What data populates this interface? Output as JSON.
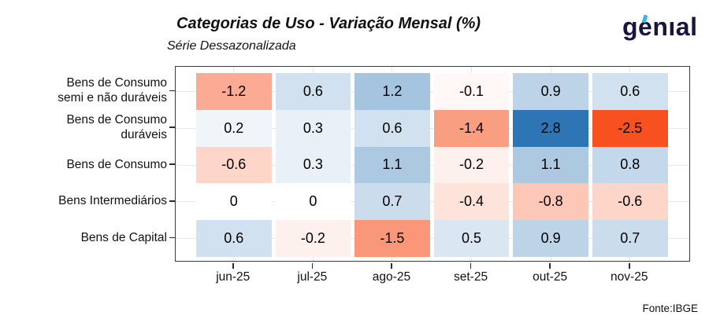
{
  "header": {
    "logo_text": "genıal"
  },
  "footer": {
    "source": "Fonte:IBGE"
  },
  "colors": {
    "negative_end": "#F6511E",
    "zero": "#FFFFFF",
    "positive_end": "#2E75B6",
    "logo_navy": "#16163F",
    "logo_cyan": "#38B6EC",
    "panel_border": "#3B3B3B",
    "gridline": "#E7E7E7",
    "cell_text": "#000000"
  },
  "chart_data": {
    "type": "heatmap",
    "title": "Categorias de Uso - Variação Mensal (%)",
    "subtitle": "Série Dessazonalizada",
    "x_categories": [
      "jun-25",
      "jul-25",
      "ago-25",
      "set-25",
      "out-25",
      "nov-25"
    ],
    "rows": [
      {
        "label": "Bens de Consumo\nsemi e não duráveis",
        "values": [
          -1.2,
          0.6,
          1.2,
          -0.1,
          0.9,
          0.6
        ]
      },
      {
        "label": "Bens de Consumo\nduráveis",
        "values": [
          0.2,
          0.3,
          0.6,
          -1.4,
          2.8,
          -2.5
        ]
      },
      {
        "label": "Bens de Consumo",
        "values": [
          -0.6,
          0.3,
          1.1,
          -0.2,
          1.1,
          0.8
        ]
      },
      {
        "label": "Bens Intermediários",
        "values": [
          0,
          0,
          0.7,
          -0.4,
          -0.8,
          -0.6
        ]
      },
      {
        "label": "Bens de Capital",
        "values": [
          0.6,
          -0.2,
          -1.5,
          0.5,
          0.9,
          0.7
        ]
      }
    ],
    "color_scale": {
      "kind": "diverging",
      "domain": [
        -2.5,
        0,
        2.8
      ],
      "range": [
        "#F6511E",
        "#FFFFFF",
        "#2E75B6"
      ]
    },
    "legend": "none",
    "grid": true
  }
}
